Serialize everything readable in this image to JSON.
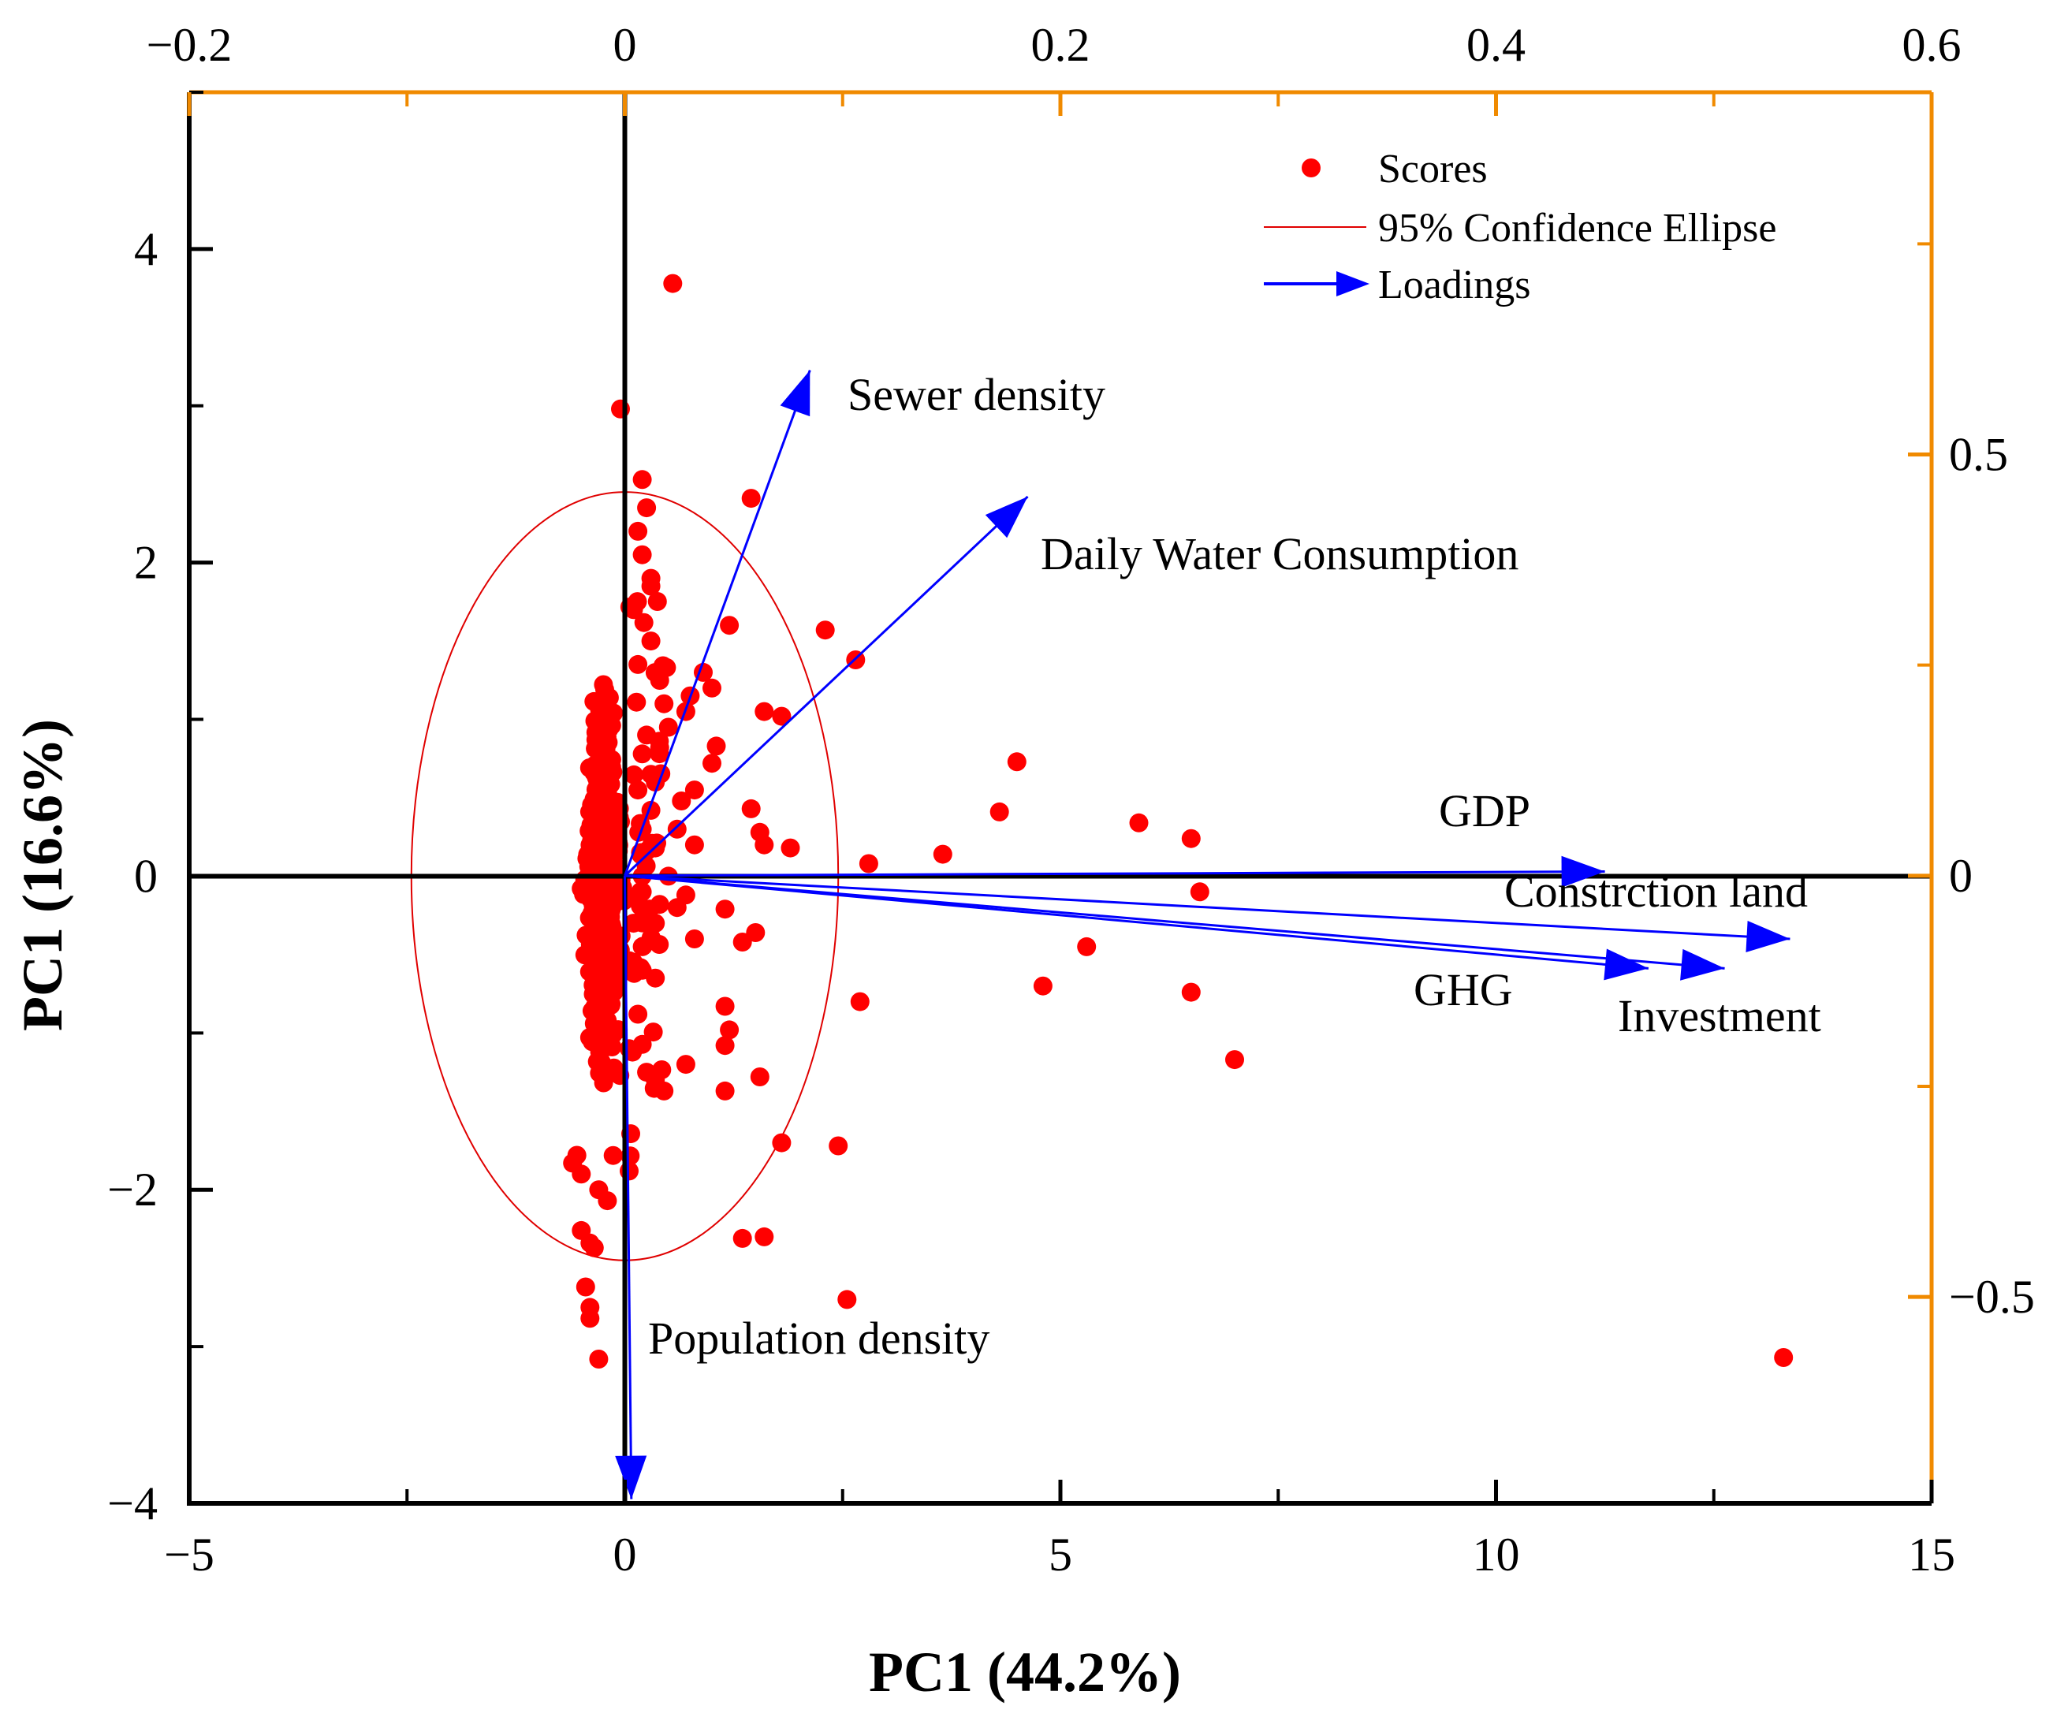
{
  "chart_data": {
    "type": "scatter",
    "xlabel": "PC1 (44.2%)",
    "ylabel": "PC1 (16.6%)",
    "xlim": [
      -5,
      15
    ],
    "ylim": [
      -4,
      5
    ],
    "xticks": [
      "−5",
      "0",
      "5",
      "10",
      "15"
    ],
    "yticks": [
      "−4",
      "−2",
      "0",
      "2",
      "4"
    ],
    "top_axis": {
      "lim": [
        -0.2,
        0.6
      ],
      "ticks": [
        "−0.2",
        "0",
        "0.2",
        "0.4",
        "0.6"
      ],
      "color": "#f08a00"
    },
    "right_axis": {
      "lim": [
        -0.745,
        0.93
      ],
      "ticks": [
        "−0.5",
        "0",
        "0.5"
      ],
      "color": "#f08a00"
    },
    "legend": {
      "scores": "Scores",
      "ellipse": "95% Confidence Ellipse",
      "loadings": "Loadings"
    },
    "colors": {
      "scores": "#ff0000",
      "ellipse": "#e00000",
      "loadings": "#0000ff",
      "axes": "#000000",
      "secondary_axes": "#f08a00"
    },
    "ellipse": {
      "cx": 0,
      "cy": 0,
      "rx": 2.45,
      "ry": 2.45
    },
    "loadings": [
      {
        "name": "Sewer density",
        "x": 0.085,
        "y": 0.6
      },
      {
        "name": "Daily Water Consumption",
        "x": 0.185,
        "y": 0.45
      },
      {
        "name": "GDP",
        "x": 0.45,
        "y": 0.005
      },
      {
        "name": "Constrction land",
        "x": 0.535,
        "y": -0.075
      },
      {
        "name": "GHG",
        "x": 0.47,
        "y": -0.11
      },
      {
        "name": "Investment",
        "x": 0.505,
        "y": -0.11
      },
      {
        "name": "Population density",
        "x": 0.003,
        "y": -0.74
      }
    ],
    "scores_sparse": [
      [
        0.55,
        3.78
      ],
      [
        -0.05,
        2.98
      ],
      [
        0.2,
        2.53
      ],
      [
        1.45,
        2.41
      ],
      [
        0.25,
        2.35
      ],
      [
        0.3,
        1.85
      ],
      [
        0.1,
        1.7
      ],
      [
        0.3,
        1.5
      ],
      [
        1.2,
        1.6
      ],
      [
        2.3,
        1.57
      ],
      [
        2.65,
        1.38
      ],
      [
        0.9,
        1.3
      ],
      [
        1.0,
        1.2
      ],
      [
        0.75,
        1.15
      ],
      [
        0.7,
        1.05
      ],
      [
        1.6,
        1.05
      ],
      [
        1.8,
        1.02
      ],
      [
        0.5,
        0.95
      ],
      [
        0.4,
        0.82
      ],
      [
        1.05,
        0.83
      ],
      [
        1.0,
        0.72
      ],
      [
        0.3,
        0.65
      ],
      [
        0.8,
        0.55
      ],
      [
        0.65,
        0.48
      ],
      [
        1.45,
        0.43
      ],
      [
        0.3,
        0.42
      ],
      [
        0.6,
        0.3
      ],
      [
        1.55,
        0.28
      ],
      [
        0.8,
        0.2
      ],
      [
        1.6,
        0.2
      ],
      [
        1.9,
        0.18
      ],
      [
        0.35,
        0.18
      ],
      [
        2.8,
        0.08
      ],
      [
        3.65,
        0.14
      ],
      [
        4.3,
        0.41
      ],
      [
        4.5,
        0.73
      ],
      [
        5.9,
        0.34
      ],
      [
        6.5,
        0.24
      ],
      [
        6.6,
        -0.1
      ],
      [
        5.3,
        -0.45
      ],
      [
        4.8,
        -0.7
      ],
      [
        6.5,
        -0.74
      ],
      [
        7.0,
        -1.17
      ],
      [
        13.3,
        -3.07
      ],
      [
        2.7,
        -0.8
      ],
      [
        0.2,
        -0.1
      ],
      [
        0.4,
        -0.18
      ],
      [
        0.7,
        -0.12
      ],
      [
        0.6,
        -0.2
      ],
      [
        1.15,
        -0.21
      ],
      [
        0.35,
        -0.3
      ],
      [
        1.5,
        -0.36
      ],
      [
        1.35,
        -0.42
      ],
      [
        0.8,
        -0.4
      ],
      [
        0.2,
        -0.45
      ],
      [
        0.2,
        -0.6
      ],
      [
        0.15,
        -0.88
      ],
      [
        1.15,
        -0.83
      ],
      [
        1.2,
        -0.98
      ],
      [
        1.15,
        -1.08
      ],
      [
        0.7,
        -1.2
      ],
      [
        0.35,
        -1.3
      ],
      [
        0.45,
        -1.37
      ],
      [
        1.15,
        -1.37
      ],
      [
        1.55,
        -1.28
      ],
      [
        1.8,
        -1.7
      ],
      [
        2.45,
        -1.72
      ],
      [
        0.05,
        -1.88
      ],
      [
        -0.2,
        -2.07
      ],
      [
        1.35,
        -2.31
      ],
      [
        1.6,
        -2.3
      ],
      [
        -0.5,
        -2.26
      ],
      [
        -0.35,
        -2.37
      ],
      [
        -0.4,
        -2.34
      ],
      [
        2.55,
        -2.7
      ],
      [
        -0.45,
        -2.62
      ],
      [
        -0.4,
        -2.75
      ],
      [
        -0.4,
        -2.82
      ],
      [
        -0.3,
        -3.08
      ],
      [
        -0.55,
        -1.78
      ],
      [
        0.15,
        2.2
      ],
      [
        0.2,
        2.05
      ],
      [
        0.3,
        1.9
      ],
      [
        0.15,
        1.35
      ],
      [
        0.45,
        1.1
      ],
      [
        0.25,
        0.9
      ],
      [
        0.2,
        0.78
      ],
      [
        0.35,
        0.6
      ],
      [
        0.15,
        0.55
      ],
      [
        0.2,
        0.3
      ],
      [
        0.1,
        -0.3
      ],
      [
        0.1,
        -0.55
      ],
      [
        0.35,
        -0.65
      ],
      [
        0.05,
        -1.1
      ],
      [
        0.25,
        -1.25
      ],
      [
        -0.6,
        -1.83
      ],
      [
        -0.5,
        -1.9
      ],
      [
        -0.3,
        -2.0
      ],
      [
        0.5,
        0.0
      ],
      [
        0.2,
        0.0
      ]
    ]
  }
}
